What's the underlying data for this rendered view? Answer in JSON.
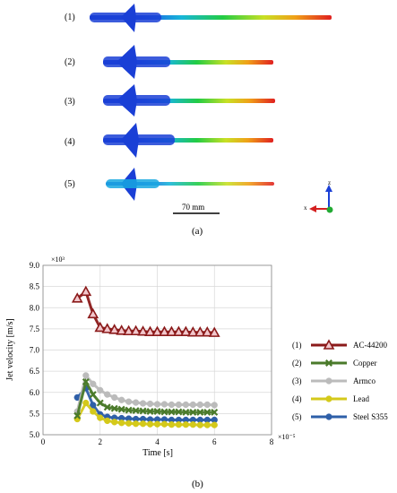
{
  "panel_a": {
    "row_labels": [
      "(1)",
      "(2)",
      "(3)",
      "(4)",
      "(5)"
    ],
    "scale_label": "70 mm",
    "caption": "(a)",
    "axes_labels": {
      "z": "z",
      "x": "x"
    }
  },
  "panel_b": {
    "caption": "(b)",
    "y_exponent": "×10³",
    "x_exponent": "×10⁻⁵"
  },
  "colors": {
    "AC-44200": "#8b1a1a",
    "Copper": "#4a7a2a",
    "Armco": "#bbbbbb",
    "Lead": "#d4c91a",
    "Steel S355": "#2e5fa8"
  },
  "chart_data": {
    "type": "line",
    "xlabel": "Time [s]",
    "ylabel": "Jet velocity [m/s]",
    "xlim": [
      0,
      8
    ],
    "ylim": [
      5.0,
      9.0
    ],
    "x_ticks": [
      0,
      2,
      4,
      6,
      8
    ],
    "y_ticks": [
      5.0,
      5.5,
      6.0,
      6.5,
      7.0,
      7.5,
      8.0,
      8.5,
      9.0
    ],
    "x_tick_labels": [
      "0",
      "2",
      "4",
      "6",
      "8"
    ],
    "y_tick_labels": [
      "5.0",
      "5.5",
      "6.0",
      "6.5",
      "7.0",
      "7.5",
      "8.0",
      "8.5",
      "9.0"
    ],
    "grid": true,
    "legend_position": "right",
    "series": [
      {
        "name": "AC-44200",
        "legend_num": "(1)",
        "marker": "triangle",
        "x": [
          1.2,
          1.5,
          1.75,
          2.0,
          2.25,
          2.5,
          2.75,
          3.0,
          3.25,
          3.5,
          3.75,
          4.0,
          4.25,
          4.5,
          4.75,
          5.0,
          5.25,
          5.5,
          5.75,
          6.0
        ],
        "y": [
          8.22,
          8.38,
          7.85,
          7.53,
          7.5,
          7.48,
          7.46,
          7.45,
          7.45,
          7.44,
          7.43,
          7.43,
          7.43,
          7.43,
          7.43,
          7.43,
          7.42,
          7.42,
          7.42,
          7.41
        ]
      },
      {
        "name": "Copper",
        "legend_num": "(2)",
        "marker": "x",
        "x": [
          1.2,
          1.5,
          1.75,
          2.0,
          2.25,
          2.5,
          2.75,
          3.0,
          3.25,
          3.5,
          3.75,
          4.0,
          4.25,
          4.5,
          4.75,
          5.0,
          5.25,
          5.5,
          5.75,
          6.0
        ],
        "y": [
          5.45,
          6.25,
          5.95,
          5.75,
          5.65,
          5.62,
          5.6,
          5.58,
          5.57,
          5.56,
          5.55,
          5.55,
          5.54,
          5.54,
          5.54,
          5.53,
          5.53,
          5.53,
          5.53,
          5.53
        ]
      },
      {
        "name": "Armco",
        "legend_num": "(3)",
        "marker": "circle",
        "x": [
          1.2,
          1.5,
          1.75,
          2.0,
          2.25,
          2.5,
          2.75,
          3.0,
          3.25,
          3.5,
          3.75,
          4.0,
          4.25,
          4.5,
          4.75,
          5.0,
          5.25,
          5.5,
          5.75,
          6.0
        ],
        "y": [
          5.55,
          6.4,
          6.2,
          6.05,
          5.95,
          5.88,
          5.82,
          5.78,
          5.76,
          5.74,
          5.73,
          5.72,
          5.72,
          5.71,
          5.71,
          5.71,
          5.71,
          5.71,
          5.71,
          5.7
        ]
      },
      {
        "name": "Lead",
        "legend_num": "(4)",
        "marker": "circle",
        "x": [
          1.2,
          1.5,
          1.75,
          2.0,
          2.25,
          2.5,
          2.75,
          3.0,
          3.25,
          3.5,
          3.75,
          4.0,
          4.25,
          4.5,
          4.75,
          5.0,
          5.25,
          5.5,
          5.75,
          6.0
        ],
        "y": [
          5.37,
          5.75,
          5.55,
          5.4,
          5.33,
          5.3,
          5.28,
          5.27,
          5.26,
          5.26,
          5.25,
          5.25,
          5.25,
          5.24,
          5.24,
          5.24,
          5.24,
          5.23,
          5.23,
          5.23
        ]
      },
      {
        "name": "Steel S355",
        "legend_num": "(5)",
        "marker": "circle",
        "x": [
          1.2,
          1.5,
          1.75,
          2.0,
          2.25,
          2.5,
          2.75,
          3.0,
          3.25,
          3.5,
          3.75,
          4.0,
          4.25,
          4.5,
          4.75,
          5.0,
          5.25,
          5.5,
          5.75,
          6.0
        ],
        "y": [
          5.88,
          6.1,
          5.7,
          5.48,
          5.42,
          5.4,
          5.39,
          5.38,
          5.37,
          5.37,
          5.36,
          5.36,
          5.36,
          5.35,
          5.35,
          5.35,
          5.35,
          5.35,
          5.35,
          5.35
        ]
      }
    ]
  }
}
